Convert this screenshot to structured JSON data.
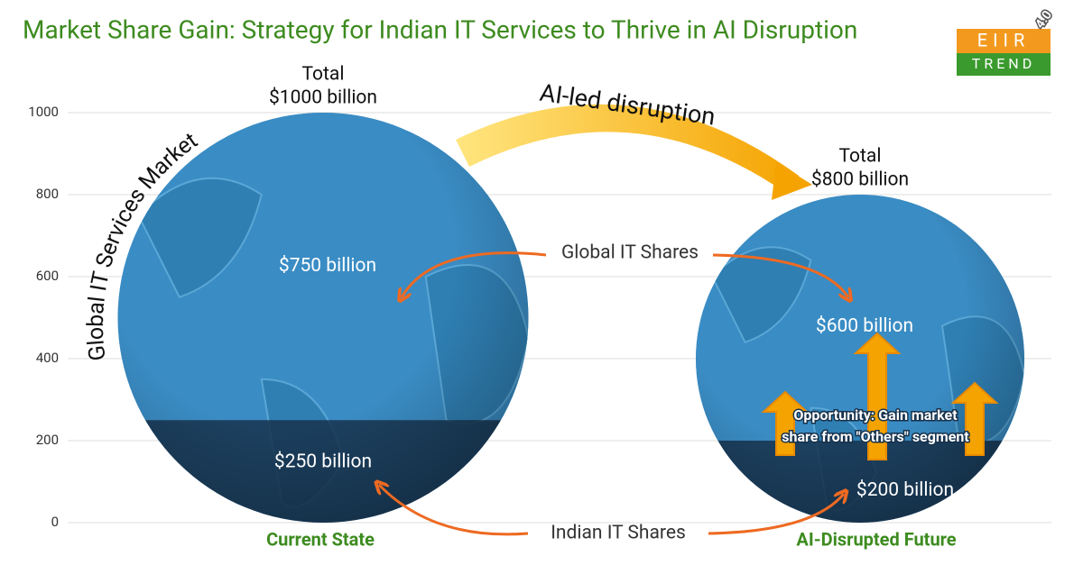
{
  "chart_data": {
    "type": "globe",
    "title": "Market Share Gain: Strategy for Indian IT Services to Thrive in AI Disruption",
    "categories": [
      "Current State",
      "AI-Disrupted Future"
    ],
    "totals": [
      1000,
      800
    ],
    "total_title": "Total",
    "total_labels": [
      "$1000 billion",
      "$800 billion"
    ],
    "series": [
      {
        "name": "Indian IT Shares",
        "color": "#17324d",
        "values": [
          250,
          200
        ],
        "value_labels": [
          "$250 billion",
          "$200 billion"
        ]
      },
      {
        "name": "Global IT Shares",
        "color": "#3a8cc4",
        "values": [
          750,
          600
        ],
        "value_labels": [
          "$750 billion",
          "$600 billion"
        ]
      }
    ],
    "ylim": [
      0,
      1000
    ],
    "yticks": [
      0,
      200,
      400,
      600,
      800,
      1000
    ],
    "grid": true,
    "annotations": {
      "arrow": "AI-led disruption",
      "axis_curve": "Global IT Services Market",
      "opportunity": [
        "Opportunity: Gain market",
        "share from \"Others\" segment"
      ]
    },
    "logo": {
      "top": "EIIR",
      "bottom": "TREND",
      "badge": "4.0"
    }
  }
}
